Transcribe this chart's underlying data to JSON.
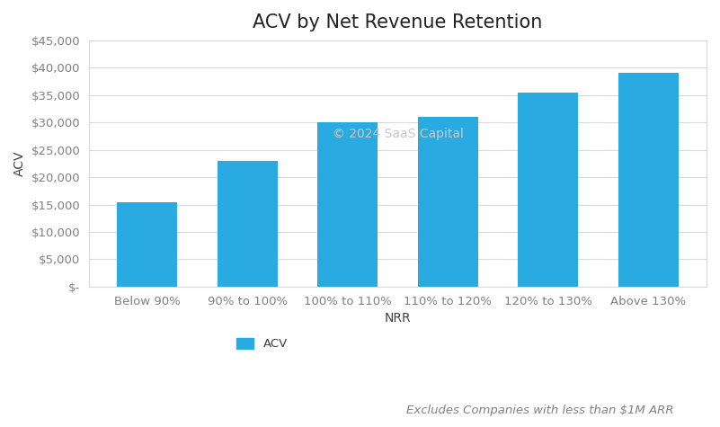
{
  "title": "ACV by Net Revenue Retention",
  "categories": [
    "Below 90%",
    "90% to 100%",
    "100% to 110%",
    "110% to 120%",
    "120% to 130%",
    "Above 130%"
  ],
  "values": [
    15400,
    23000,
    30000,
    31000,
    35500,
    39000
  ],
  "bar_color": "#29ABE2",
  "xlabel": "NRR",
  "ylabel": "ACV",
  "ylim": [
    0,
    45000
  ],
  "yticks": [
    0,
    5000,
    10000,
    15000,
    20000,
    25000,
    30000,
    35000,
    40000,
    45000
  ],
  "ytick_labels": [
    "$-",
    "$5,000",
    "$10,000",
    "$15,000",
    "$20,000",
    "$25,000",
    "$30,000",
    "$35,000",
    "$40,000",
    "$45,000"
  ],
  "background_color": "#ffffff",
  "plot_bg_color": "#ffffff",
  "grid_color": "#d9d9d9",
  "border_color": "#d9d9d9",
  "legend_label": "ACV",
  "footnote": "Excludes Companies with less than $1M ARR",
  "watermark": "© 2024 SaaS Capital",
  "title_fontsize": 15,
  "axis_label_fontsize": 10,
  "tick_fontsize": 9.5,
  "footnote_fontsize": 9.5,
  "watermark_fontsize": 10,
  "tick_color": "#808080",
  "axis_label_color": "#404040",
  "title_color": "#222222"
}
